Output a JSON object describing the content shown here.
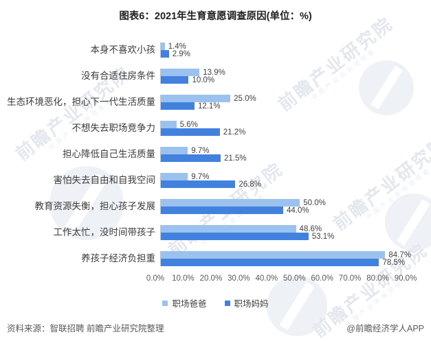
{
  "title": "图表6：2021年生育意愿调查原因(单位：%)",
  "chart_data": {
    "type": "bar",
    "orientation": "horizontal",
    "title": "图表6：2021年生育意愿调查原因(单位：%)",
    "categories": [
      "本身不喜欢小孩",
      "没有合适住房条件",
      "生态环境恶化，担心下一代生活质量",
      "不想失去职场竞争力",
      "担心降低自己生活质量",
      "害怕失去自由和自我空间",
      "教育资源失衡，担心孩子发展",
      "工作太忙，没时间带孩子",
      "养孩子经济负担重"
    ],
    "series": [
      {
        "name": "职场爸爸",
        "color": "#9BC2EE",
        "values": [
          1.4,
          13.9,
          25.0,
          5.6,
          9.7,
          9.7,
          50.0,
          48.6,
          84.7
        ],
        "labels": [
          "1.4%",
          "13.9%",
          "25.0%",
          "5.6%",
          "9.7%",
          "9.7%",
          "50.0%",
          "48.6%",
          "84.7%"
        ]
      },
      {
        "name": "职场妈妈",
        "color": "#4282DE",
        "values": [
          2.9,
          10.0,
          12.1,
          21.2,
          21.5,
          26.8,
          44.0,
          53.1,
          78.5
        ],
        "labels": [
          "2.9%",
          "10.0%",
          "12.1%",
          "21.2%",
          "21.5%",
          "26.8%",
          "44.0%",
          "53.1%",
          "78.5%"
        ]
      }
    ],
    "x_ticks": [
      "0.0%",
      "10.0%",
      "20.0%",
      "30.0%",
      "40.0%",
      "50.0%",
      "60.0%",
      "70.0%",
      "80.0%",
      "90.0%"
    ],
    "xlim": [
      0,
      90
    ],
    "grid": false,
    "legend_position": "bottom"
  },
  "footer": {
    "source": "资料来源：智联招聘 前瞻产业研究院整理",
    "credit": "@前瞻经济学人APP"
  },
  "watermark": {
    "text": "前瞻产业研究院",
    "subtext": "中国产业咨询领导者"
  }
}
